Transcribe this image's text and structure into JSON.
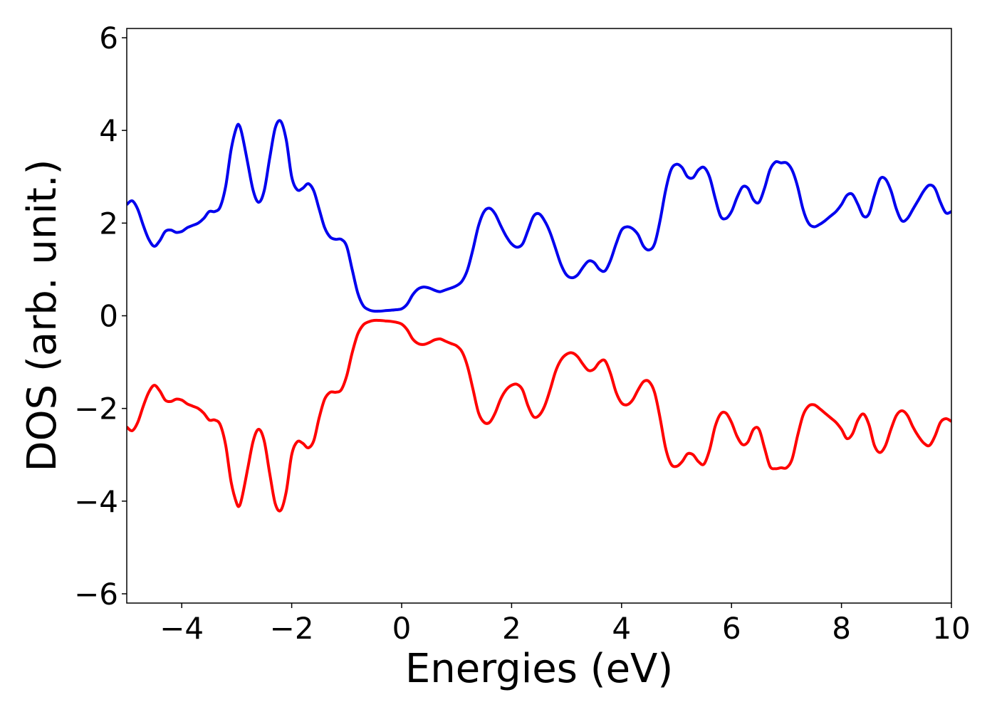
{
  "chart_data": {
    "type": "line",
    "title": "",
    "xlabel": "Energies (eV)",
    "ylabel": "DOS (arb. unit.)",
    "xlim": [
      -5,
      10
    ],
    "ylim": [
      -6.2,
      6.2
    ],
    "grid": false,
    "legend": "none",
    "xticks": [
      {
        "value": -4,
        "label": "−4"
      },
      {
        "value": -2,
        "label": "−2"
      },
      {
        "value": 0,
        "label": "0"
      },
      {
        "value": 2,
        "label": "2"
      },
      {
        "value": 4,
        "label": "4"
      },
      {
        "value": 6,
        "label": "6"
      },
      {
        "value": 8,
        "label": "8"
      },
      {
        "value": 10,
        "label": "10"
      }
    ],
    "yticks": [
      {
        "value": -6,
        "label": "−6"
      },
      {
        "value": -4,
        "label": "−4"
      },
      {
        "value": -2,
        "label": "−2"
      },
      {
        "value": 0,
        "label": "0"
      },
      {
        "value": 2,
        "label": "2"
      },
      {
        "value": 4,
        "label": "4"
      },
      {
        "value": 6,
        "label": "6"
      }
    ],
    "series": [
      {
        "color": "#0000ee",
        "points": [
          [
            -5.0,
            2.4
          ],
          [
            -4.9,
            2.48
          ],
          [
            -4.8,
            2.3
          ],
          [
            -4.7,
            1.95
          ],
          [
            -4.6,
            1.65
          ],
          [
            -4.5,
            1.5
          ],
          [
            -4.4,
            1.62
          ],
          [
            -4.3,
            1.82
          ],
          [
            -4.2,
            1.85
          ],
          [
            -4.1,
            1.8
          ],
          [
            -4.0,
            1.82
          ],
          [
            -3.9,
            1.9
          ],
          [
            -3.8,
            1.95
          ],
          [
            -3.7,
            2.0
          ],
          [
            -3.6,
            2.1
          ],
          [
            -3.5,
            2.25
          ],
          [
            -3.4,
            2.25
          ],
          [
            -3.3,
            2.35
          ],
          [
            -3.2,
            2.8
          ],
          [
            -3.1,
            3.6
          ],
          [
            -3.0,
            4.08
          ],
          [
            -2.95,
            4.1
          ],
          [
            -2.9,
            3.9
          ],
          [
            -2.8,
            3.3
          ],
          [
            -2.7,
            2.7
          ],
          [
            -2.6,
            2.45
          ],
          [
            -2.5,
            2.7
          ],
          [
            -2.4,
            3.4
          ],
          [
            -2.3,
            4.05
          ],
          [
            -2.2,
            4.2
          ],
          [
            -2.1,
            3.8
          ],
          [
            -2.0,
            3.0
          ],
          [
            -1.9,
            2.72
          ],
          [
            -1.8,
            2.75
          ],
          [
            -1.7,
            2.85
          ],
          [
            -1.6,
            2.7
          ],
          [
            -1.5,
            2.3
          ],
          [
            -1.4,
            1.9
          ],
          [
            -1.3,
            1.7
          ],
          [
            -1.2,
            1.65
          ],
          [
            -1.1,
            1.65
          ],
          [
            -1.0,
            1.5
          ],
          [
            -0.9,
            1.0
          ],
          [
            -0.8,
            0.5
          ],
          [
            -0.7,
            0.22
          ],
          [
            -0.6,
            0.13
          ],
          [
            -0.5,
            0.1
          ],
          [
            -0.4,
            0.1
          ],
          [
            -0.3,
            0.11
          ],
          [
            -0.2,
            0.12
          ],
          [
            -0.1,
            0.13
          ],
          [
            0.0,
            0.15
          ],
          [
            0.1,
            0.25
          ],
          [
            0.2,
            0.45
          ],
          [
            0.3,
            0.58
          ],
          [
            0.4,
            0.62
          ],
          [
            0.5,
            0.6
          ],
          [
            0.6,
            0.55
          ],
          [
            0.7,
            0.52
          ],
          [
            0.8,
            0.56
          ],
          [
            0.9,
            0.6
          ],
          [
            1.0,
            0.65
          ],
          [
            1.1,
            0.75
          ],
          [
            1.2,
            1.0
          ],
          [
            1.3,
            1.45
          ],
          [
            1.4,
            1.95
          ],
          [
            1.5,
            2.25
          ],
          [
            1.6,
            2.32
          ],
          [
            1.7,
            2.2
          ],
          [
            1.8,
            1.95
          ],
          [
            1.9,
            1.72
          ],
          [
            2.0,
            1.55
          ],
          [
            2.1,
            1.48
          ],
          [
            2.2,
            1.55
          ],
          [
            2.3,
            1.85
          ],
          [
            2.4,
            2.15
          ],
          [
            2.5,
            2.2
          ],
          [
            2.6,
            2.05
          ],
          [
            2.7,
            1.8
          ],
          [
            2.8,
            1.45
          ],
          [
            2.9,
            1.1
          ],
          [
            3.0,
            0.88
          ],
          [
            3.1,
            0.82
          ],
          [
            3.2,
            0.88
          ],
          [
            3.3,
            1.05
          ],
          [
            3.4,
            1.18
          ],
          [
            3.5,
            1.15
          ],
          [
            3.6,
            1.0
          ],
          [
            3.7,
            0.97
          ],
          [
            3.8,
            1.2
          ],
          [
            3.9,
            1.55
          ],
          [
            4.0,
            1.85
          ],
          [
            4.1,
            1.92
          ],
          [
            4.2,
            1.88
          ],
          [
            4.3,
            1.75
          ],
          [
            4.4,
            1.5
          ],
          [
            4.5,
            1.42
          ],
          [
            4.6,
            1.55
          ],
          [
            4.7,
            2.05
          ],
          [
            4.8,
            2.7
          ],
          [
            4.9,
            3.15
          ],
          [
            5.0,
            3.27
          ],
          [
            5.1,
            3.2
          ],
          [
            5.2,
            3.0
          ],
          [
            5.3,
            2.98
          ],
          [
            5.4,
            3.15
          ],
          [
            5.5,
            3.2
          ],
          [
            5.6,
            3.0
          ],
          [
            5.7,
            2.55
          ],
          [
            5.8,
            2.15
          ],
          [
            5.9,
            2.1
          ],
          [
            6.0,
            2.25
          ],
          [
            6.1,
            2.55
          ],
          [
            6.2,
            2.78
          ],
          [
            6.3,
            2.75
          ],
          [
            6.4,
            2.5
          ],
          [
            6.5,
            2.45
          ],
          [
            6.6,
            2.75
          ],
          [
            6.7,
            3.15
          ],
          [
            6.8,
            3.32
          ],
          [
            6.9,
            3.3
          ],
          [
            7.0,
            3.3
          ],
          [
            7.1,
            3.15
          ],
          [
            7.2,
            2.8
          ],
          [
            7.3,
            2.3
          ],
          [
            7.4,
            2.0
          ],
          [
            7.5,
            1.92
          ],
          [
            7.6,
            1.97
          ],
          [
            7.7,
            2.05
          ],
          [
            7.8,
            2.15
          ],
          [
            7.9,
            2.25
          ],
          [
            8.0,
            2.4
          ],
          [
            8.1,
            2.6
          ],
          [
            8.2,
            2.62
          ],
          [
            8.3,
            2.4
          ],
          [
            8.4,
            2.15
          ],
          [
            8.5,
            2.2
          ],
          [
            8.6,
            2.6
          ],
          [
            8.7,
            2.95
          ],
          [
            8.8,
            2.95
          ],
          [
            8.9,
            2.7
          ],
          [
            9.0,
            2.3
          ],
          [
            9.1,
            2.05
          ],
          [
            9.2,
            2.1
          ],
          [
            9.3,
            2.3
          ],
          [
            9.4,
            2.5
          ],
          [
            9.5,
            2.7
          ],
          [
            9.6,
            2.82
          ],
          [
            9.7,
            2.75
          ],
          [
            9.8,
            2.45
          ],
          [
            9.9,
            2.22
          ],
          [
            10.0,
            2.25
          ]
        ]
      },
      {
        "color": "#ff0000",
        "points": [
          [
            -5.0,
            -2.4
          ],
          [
            -4.9,
            -2.48
          ],
          [
            -4.8,
            -2.3
          ],
          [
            -4.7,
            -1.95
          ],
          [
            -4.6,
            -1.65
          ],
          [
            -4.5,
            -1.5
          ],
          [
            -4.4,
            -1.62
          ],
          [
            -4.3,
            -1.82
          ],
          [
            -4.2,
            -1.85
          ],
          [
            -4.1,
            -1.8
          ],
          [
            -4.0,
            -1.82
          ],
          [
            -3.9,
            -1.9
          ],
          [
            -3.8,
            -1.95
          ],
          [
            -3.7,
            -2.0
          ],
          [
            -3.6,
            -2.1
          ],
          [
            -3.5,
            -2.25
          ],
          [
            -3.4,
            -2.25
          ],
          [
            -3.3,
            -2.35
          ],
          [
            -3.2,
            -2.8
          ],
          [
            -3.1,
            -3.6
          ],
          [
            -3.0,
            -4.05
          ],
          [
            -2.95,
            -4.1
          ],
          [
            -2.9,
            -3.9
          ],
          [
            -2.8,
            -3.3
          ],
          [
            -2.7,
            -2.7
          ],
          [
            -2.6,
            -2.45
          ],
          [
            -2.5,
            -2.7
          ],
          [
            -2.4,
            -3.4
          ],
          [
            -2.3,
            -4.05
          ],
          [
            -2.2,
            -4.2
          ],
          [
            -2.1,
            -3.8
          ],
          [
            -2.0,
            -3.0
          ],
          [
            -1.9,
            -2.72
          ],
          [
            -1.8,
            -2.75
          ],
          [
            -1.7,
            -2.85
          ],
          [
            -1.6,
            -2.7
          ],
          [
            -1.5,
            -2.2
          ],
          [
            -1.4,
            -1.8
          ],
          [
            -1.3,
            -1.65
          ],
          [
            -1.2,
            -1.65
          ],
          [
            -1.1,
            -1.6
          ],
          [
            -1.0,
            -1.3
          ],
          [
            -0.9,
            -0.8
          ],
          [
            -0.8,
            -0.4
          ],
          [
            -0.7,
            -0.2
          ],
          [
            -0.6,
            -0.13
          ],
          [
            -0.5,
            -0.1
          ],
          [
            -0.4,
            -0.1
          ],
          [
            -0.3,
            -0.11
          ],
          [
            -0.2,
            -0.12
          ],
          [
            -0.1,
            -0.14
          ],
          [
            0.0,
            -0.18
          ],
          [
            0.1,
            -0.3
          ],
          [
            0.2,
            -0.5
          ],
          [
            0.3,
            -0.6
          ],
          [
            0.4,
            -0.62
          ],
          [
            0.5,
            -0.58
          ],
          [
            0.6,
            -0.52
          ],
          [
            0.7,
            -0.5
          ],
          [
            0.8,
            -0.55
          ],
          [
            0.9,
            -0.6
          ],
          [
            1.0,
            -0.65
          ],
          [
            1.1,
            -0.78
          ],
          [
            1.2,
            -1.1
          ],
          [
            1.3,
            -1.6
          ],
          [
            1.4,
            -2.1
          ],
          [
            1.5,
            -2.3
          ],
          [
            1.6,
            -2.3
          ],
          [
            1.7,
            -2.1
          ],
          [
            1.8,
            -1.8
          ],
          [
            1.9,
            -1.6
          ],
          [
            2.0,
            -1.5
          ],
          [
            2.1,
            -1.48
          ],
          [
            2.2,
            -1.6
          ],
          [
            2.3,
            -1.95
          ],
          [
            2.4,
            -2.18
          ],
          [
            2.5,
            -2.15
          ],
          [
            2.6,
            -1.95
          ],
          [
            2.7,
            -1.6
          ],
          [
            2.8,
            -1.2
          ],
          [
            2.9,
            -0.95
          ],
          [
            3.0,
            -0.83
          ],
          [
            3.1,
            -0.8
          ],
          [
            3.2,
            -0.88
          ],
          [
            3.3,
            -1.05
          ],
          [
            3.4,
            -1.18
          ],
          [
            3.5,
            -1.15
          ],
          [
            3.6,
            -1.0
          ],
          [
            3.7,
            -0.97
          ],
          [
            3.8,
            -1.25
          ],
          [
            3.9,
            -1.65
          ],
          [
            4.0,
            -1.88
          ],
          [
            4.1,
            -1.92
          ],
          [
            4.2,
            -1.82
          ],
          [
            4.3,
            -1.6
          ],
          [
            4.4,
            -1.42
          ],
          [
            4.5,
            -1.42
          ],
          [
            4.6,
            -1.65
          ],
          [
            4.7,
            -2.2
          ],
          [
            4.8,
            -2.85
          ],
          [
            4.9,
            -3.2
          ],
          [
            5.0,
            -3.25
          ],
          [
            5.1,
            -3.15
          ],
          [
            5.2,
            -2.98
          ],
          [
            5.3,
            -3.0
          ],
          [
            5.4,
            -3.15
          ],
          [
            5.5,
            -3.2
          ],
          [
            5.6,
            -2.9
          ],
          [
            5.7,
            -2.4
          ],
          [
            5.8,
            -2.12
          ],
          [
            5.9,
            -2.1
          ],
          [
            6.0,
            -2.3
          ],
          [
            6.1,
            -2.6
          ],
          [
            6.2,
            -2.78
          ],
          [
            6.3,
            -2.72
          ],
          [
            6.4,
            -2.45
          ],
          [
            6.5,
            -2.45
          ],
          [
            6.6,
            -2.85
          ],
          [
            6.7,
            -3.25
          ],
          [
            6.8,
            -3.3
          ],
          [
            6.9,
            -3.28
          ],
          [
            7.0,
            -3.28
          ],
          [
            7.1,
            -3.1
          ],
          [
            7.2,
            -2.6
          ],
          [
            7.3,
            -2.15
          ],
          [
            7.4,
            -1.95
          ],
          [
            7.5,
            -1.92
          ],
          [
            7.6,
            -2.0
          ],
          [
            7.7,
            -2.1
          ],
          [
            7.8,
            -2.2
          ],
          [
            7.9,
            -2.3
          ],
          [
            8.0,
            -2.45
          ],
          [
            8.1,
            -2.65
          ],
          [
            8.2,
            -2.55
          ],
          [
            8.3,
            -2.25
          ],
          [
            8.4,
            -2.12
          ],
          [
            8.5,
            -2.35
          ],
          [
            8.6,
            -2.8
          ],
          [
            8.7,
            -2.95
          ],
          [
            8.8,
            -2.8
          ],
          [
            8.9,
            -2.45
          ],
          [
            9.0,
            -2.15
          ],
          [
            9.1,
            -2.05
          ],
          [
            9.2,
            -2.15
          ],
          [
            9.3,
            -2.4
          ],
          [
            9.4,
            -2.6
          ],
          [
            9.5,
            -2.75
          ],
          [
            9.6,
            -2.8
          ],
          [
            9.7,
            -2.6
          ],
          [
            9.8,
            -2.3
          ],
          [
            9.9,
            -2.22
          ],
          [
            10.0,
            -2.28
          ]
        ]
      }
    ]
  }
}
